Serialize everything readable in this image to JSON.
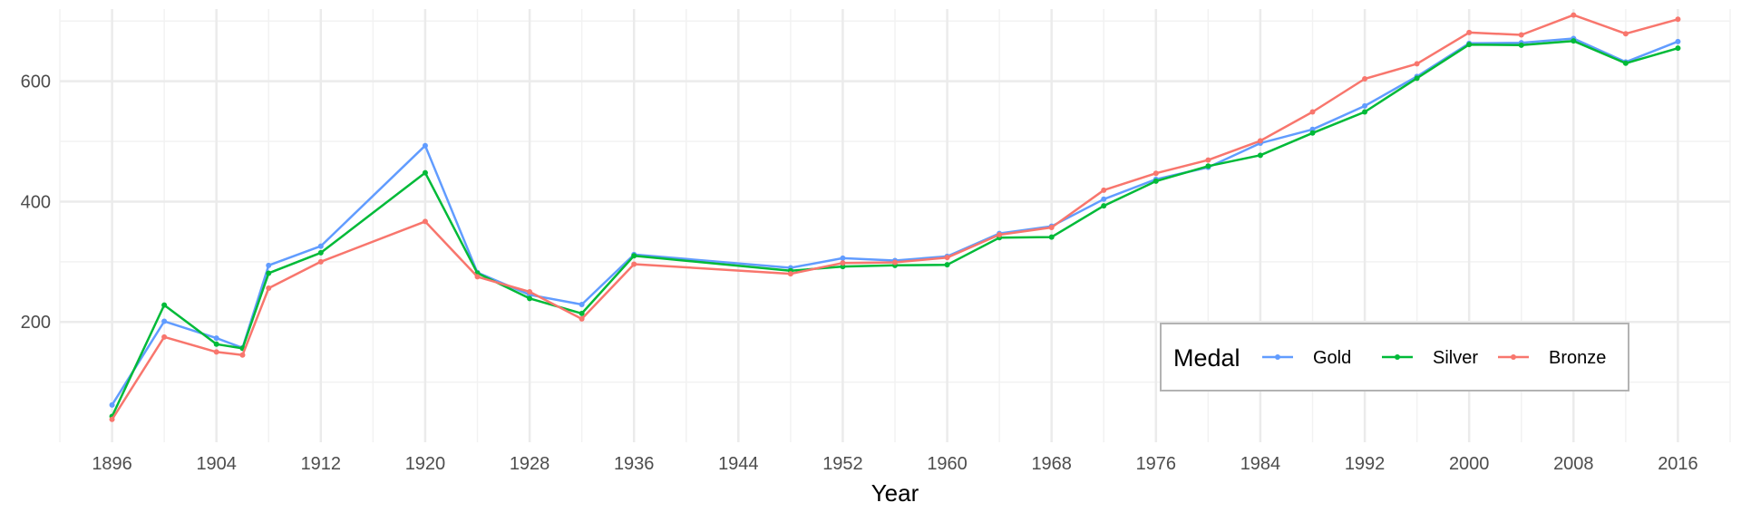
{
  "chart_data": {
    "type": "line",
    "title": "",
    "xlabel": "Year",
    "ylabel": "",
    "xlim": [
      1892,
      2020
    ],
    "ylim": [
      0,
      720
    ],
    "x_ticks": [
      1896,
      1904,
      1912,
      1920,
      1928,
      1936,
      1944,
      1952,
      1960,
      1968,
      1976,
      1984,
      1992,
      2000,
      2008,
      2016
    ],
    "y_ticks": [
      200,
      400,
      600
    ],
    "grid": true,
    "legend": {
      "title": "Medal",
      "position": "bottom-right",
      "orientation": "horizontal"
    },
    "x": [
      1896,
      1900,
      1904,
      1906,
      1908,
      1912,
      1920,
      1924,
      1928,
      1932,
      1936,
      1948,
      1952,
      1956,
      1960,
      1964,
      1968,
      1972,
      1976,
      1980,
      1984,
      1988,
      1992,
      1996,
      2000,
      2004,
      2008,
      2012,
      2016
    ],
    "series": [
      {
        "name": "Gold",
        "color": "#619CFF",
        "values": [
          62,
          201,
          173,
          157,
          294,
          326,
          493,
          282,
          245,
          229,
          312,
          290,
          306,
          302,
          309,
          347,
          359,
          404,
          437,
          457,
          497,
          520,
          559,
          608,
          663,
          664,
          671,
          632,
          666
        ]
      },
      {
        "name": "Silver",
        "color": "#00BA38",
        "values": [
          43,
          228,
          163,
          156,
          281,
          315,
          448,
          281,
          239,
          214,
          310,
          285,
          292,
          294,
          295,
          340,
          341,
          393,
          434,
          459,
          477,
          514,
          549,
          605,
          661,
          660,
          667,
          630,
          655
        ]
      },
      {
        "name": "Bronze",
        "color": "#F8766D",
        "values": [
          38,
          175,
          150,
          145,
          256,
          300,
          367,
          275,
          250,
          205,
          296,
          280,
          298,
          299,
          307,
          345,
          357,
          419,
          447,
          469,
          501,
          549,
          604,
          629,
          681,
          677,
          710,
          679,
          703
        ]
      }
    ]
  }
}
